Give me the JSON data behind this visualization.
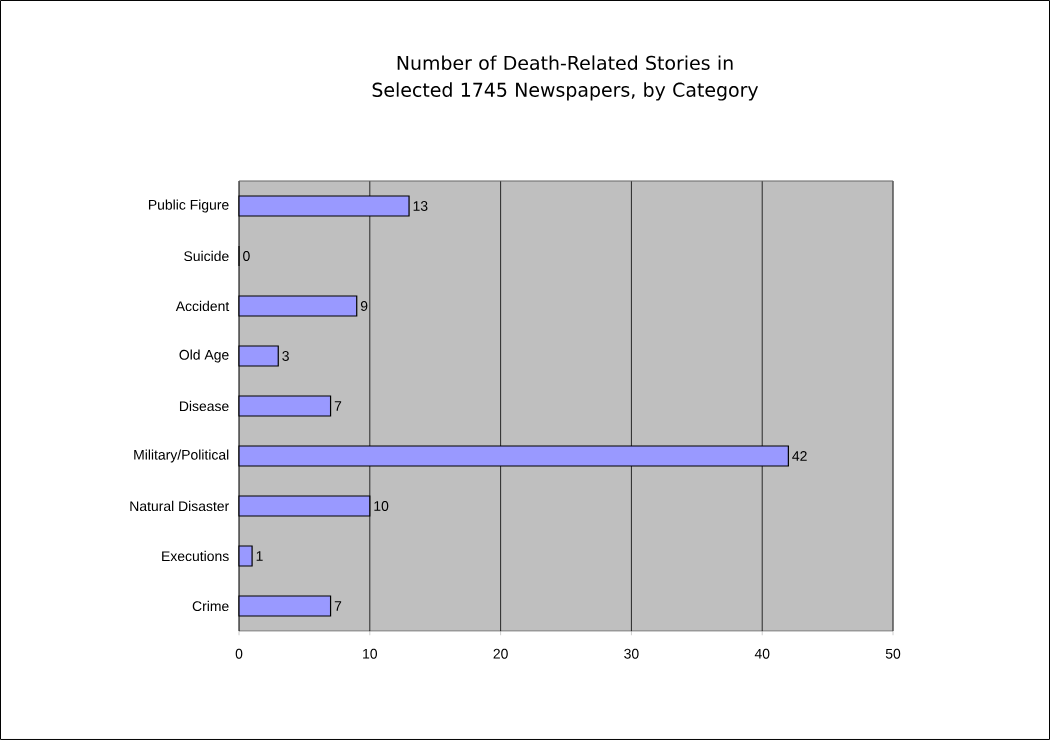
{
  "chart_data": {
    "type": "bar",
    "orientation": "horizontal",
    "title": "Number of Death-Related Stories in Selected 1745 Newspapers, by Category",
    "categories": [
      "Public Figure",
      "Suicide",
      "Accident",
      "Old Age",
      "Disease",
      "Military/Political",
      "Natural Disaster",
      "Executions",
      "Crime"
    ],
    "values": [
      13,
      0,
      9,
      3,
      7,
      42,
      10,
      1,
      7
    ],
    "color": "#9999ff",
    "data_labels": true,
    "xlim": [
      0,
      50
    ],
    "xticks": [
      0,
      10,
      20,
      30,
      40,
      50
    ],
    "grid": "x"
  }
}
